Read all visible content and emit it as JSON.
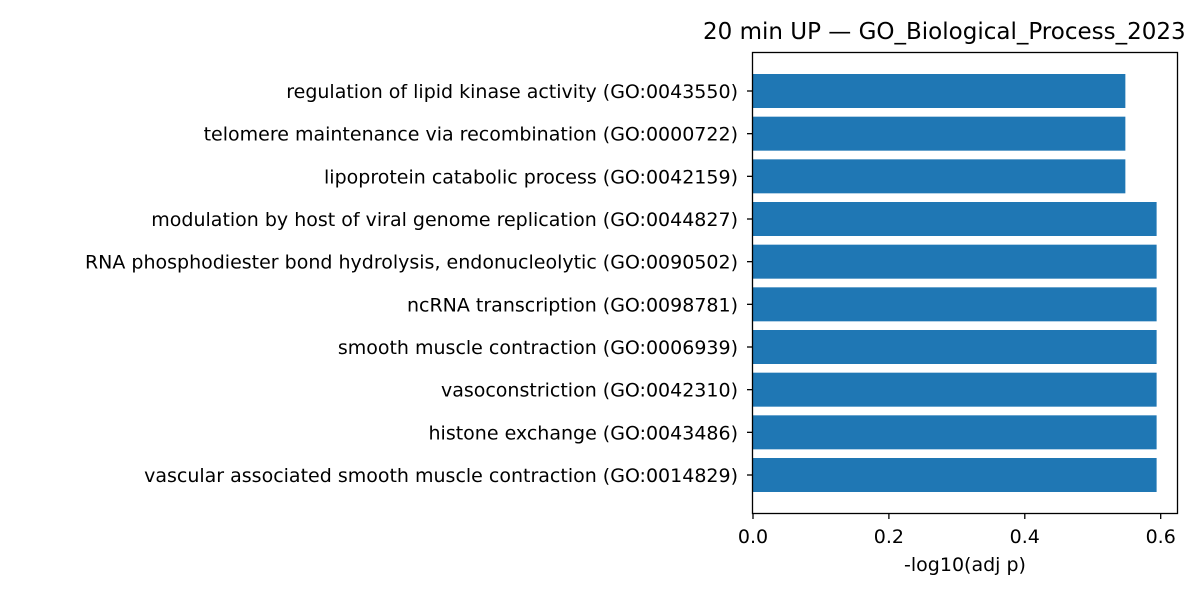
{
  "chart_data": {
    "type": "bar",
    "orientation": "horizontal",
    "title": "20 min UP — GO_Biological_Process_2023",
    "xlabel": "-log10(adj p)",
    "ylabel": "",
    "xlim": [
      0,
      0.624
    ],
    "xticks": [
      "0.0",
      "0.2",
      "0.4",
      "0.6"
    ],
    "grid": false,
    "bar_color": "#1f77b4",
    "categories": [
      "regulation of lipid kinase activity (GO:0043550)",
      "telomere maintenance via recombination (GO:0000722)",
      "lipoprotein catabolic process (GO:0042159)",
      "modulation by host of viral genome replication (GO:0044827)",
      "RNA phosphodiester bond hydrolysis, endonucleolytic (GO:0090502)",
      "ncRNA transcription (GO:0098781)",
      "smooth muscle contraction (GO:0006939)",
      "vasoconstriction (GO:0042310)",
      "histone exchange (GO:0043486)",
      "vascular associated smooth muscle contraction (GO:0014829)"
    ],
    "values": [
      0.548,
      0.548,
      0.548,
      0.594,
      0.594,
      0.594,
      0.594,
      0.594,
      0.594,
      0.594
    ]
  }
}
